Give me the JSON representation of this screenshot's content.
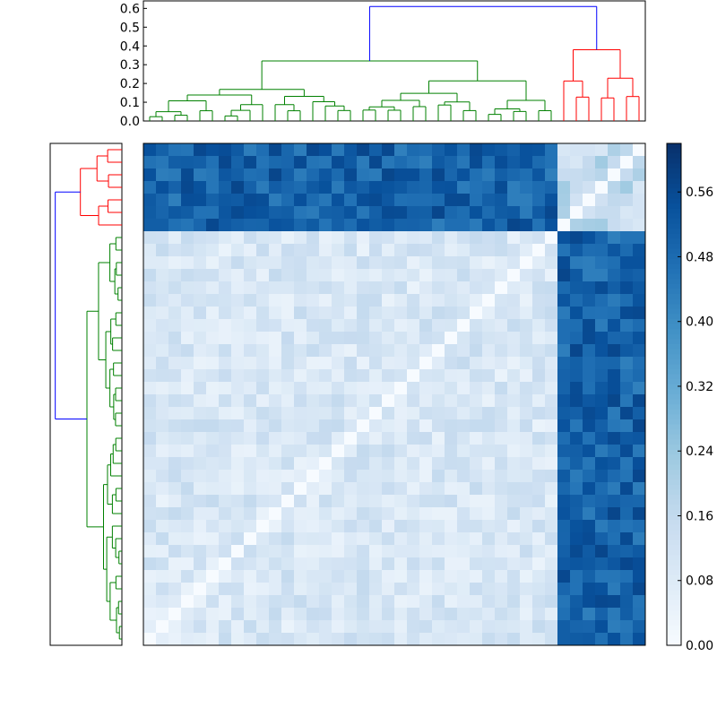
{
  "chart_data": [
    {
      "type": "dendrogram",
      "orientation": "top",
      "yticks": [
        "0.0",
        "0.1",
        "0.2",
        "0.3",
        "0.4",
        "0.5",
        "0.6"
      ],
      "ylim": [
        0,
        0.64
      ],
      "colors": {
        "cluster_a": "#008000",
        "cluster_b": "#ff0000",
        "link": "#0000ff"
      },
      "root_height": 0.61,
      "cluster_a_root_height": 0.32,
      "cluster_b_root_height": 0.38
    },
    {
      "type": "dendrogram",
      "orientation": "left",
      "colors": {
        "cluster_a": "#008000",
        "cluster_b": "#ff0000",
        "link": "#0000ff"
      }
    },
    {
      "type": "heatmap",
      "rows": 40,
      "cols": 40,
      "cluster_a_size": 33,
      "cluster_b_size": 7,
      "within_cluster_a": 0.1,
      "within_cluster_b": 0.16,
      "between_clusters": 0.5,
      "vmin": 0,
      "vmax": 0.62,
      "colormap": [
        "#f7fbff",
        "#deebf7",
        "#c6dbef",
        "#9ecae1",
        "#6baed6",
        "#4292c6",
        "#2171b5",
        "#08519c",
        "#08306b"
      ]
    },
    {
      "type": "colorbar",
      "ticks": [
        "0.00",
        "0.08",
        "0.16",
        "0.24",
        "0.32",
        "0.40",
        "0.48",
        "0.56"
      ],
      "vmin": 0,
      "vmax": 0.62
    }
  ]
}
